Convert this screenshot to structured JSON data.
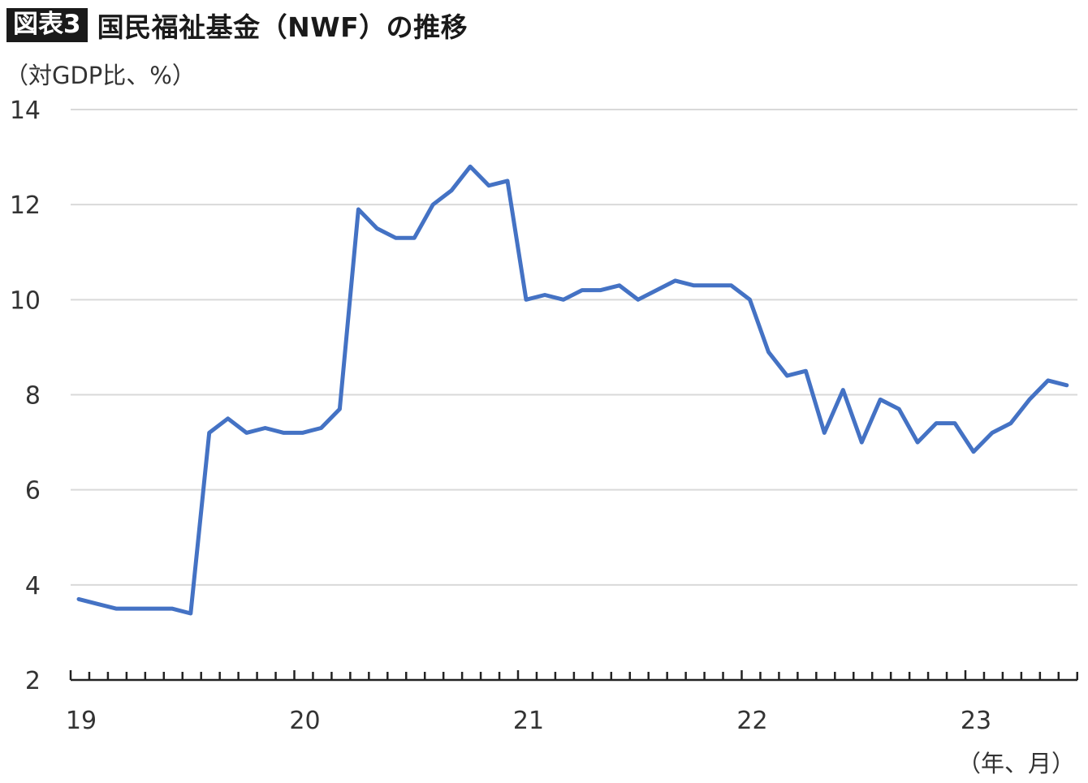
{
  "header": {
    "badge": "図表3",
    "title": "国民福祉基金（NWF）の推移"
  },
  "chart_data": {
    "type": "line",
    "y_unit_label": "（対GDP比、%）",
    "x_unit_label": "（年、月）",
    "ylim": [
      2,
      14
    ],
    "y_ticks": [
      2,
      4,
      6,
      8,
      10,
      12,
      14
    ],
    "x_tick_labels": [
      "19",
      "20",
      "21",
      "22",
      "23"
    ],
    "grid": true,
    "line_color": "#4472C4",
    "months_per_year": 12,
    "series": [
      {
        "values": [
          3.7,
          3.6,
          3.5,
          3.5,
          3.5,
          3.5,
          3.4,
          7.2,
          7.5,
          7.2,
          7.3,
          7.2,
          7.2,
          7.3,
          7.7,
          11.9,
          11.5,
          11.3,
          11.3,
          12.0,
          12.3,
          12.8,
          12.4,
          12.5,
          10.0,
          10.1,
          10.0,
          10.2,
          10.2,
          10.3,
          10.0,
          10.2,
          10.4,
          10.3,
          10.3,
          10.3,
          10.0,
          8.9,
          8.4,
          8.5,
          7.2,
          8.1,
          7.0,
          7.9,
          7.7,
          7.0,
          7.4,
          7.4,
          6.8,
          7.2,
          7.4,
          7.9,
          8.3,
          8.2
        ]
      }
    ]
  }
}
